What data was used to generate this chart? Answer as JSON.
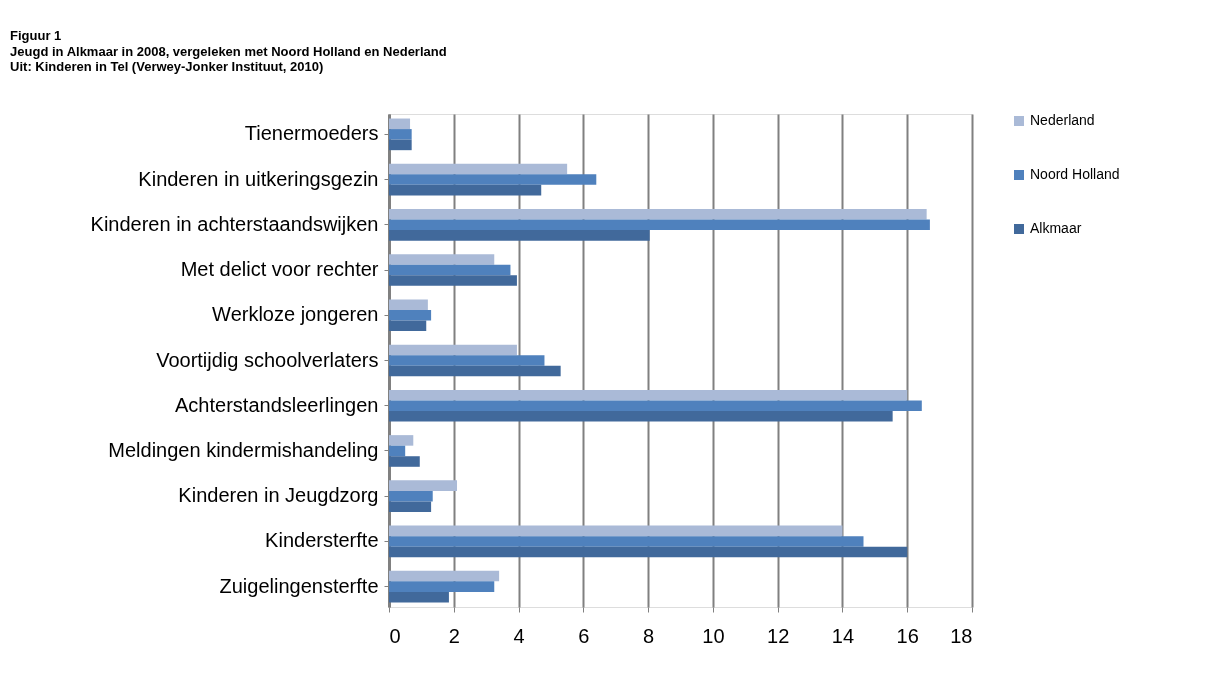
{
  "chart_data": {
    "type": "bar",
    "orientation": "horizontal",
    "title": "Figuur 1",
    "subtitle": "Jeugd in Alkmaar in 2008, vergeleken met Noord Holland en Nederland",
    "annotations": [
      "Uit: Kinderen in Tel (Verwey-Jonker Instituut, 2010)"
    ],
    "categories": [
      "Tienermoeders",
      "Kinderen in uitkeringsgezin",
      "Kinderen in achterstaandswijken",
      "Met delict voor rechter",
      "Werkloze jongeren",
      "Voortijdig schoolverlaters",
      "Achterstandsleerlingen",
      "Meldingen kindermishandeling",
      "Kinderen in Jeugdzorg",
      "Kindersterfte",
      "Zuigelingensterfte"
    ],
    "series": [
      {
        "name": "Nederland",
        "color": "#aabad7",
        "values": [
          0.65,
          5.5,
          16.6,
          3.25,
          1.2,
          3.95,
          16.0,
          0.75,
          2.1,
          14.0,
          3.4
        ]
      },
      {
        "name": "Noord Holland",
        "color": "#4f81bd",
        "values": [
          0.7,
          6.4,
          16.7,
          3.75,
          1.3,
          4.8,
          16.45,
          0.5,
          1.35,
          14.65,
          3.25
        ]
      },
      {
        "name": "Alkmaar",
        "color": "#41699b",
        "values": [
          0.7,
          4.7,
          8.05,
          3.95,
          1.15,
          5.3,
          15.55,
          0.95,
          1.3,
          16.0,
          1.85
        ]
      }
    ],
    "xlim": [
      0,
      18
    ],
    "xticks": [
      0,
      2,
      4,
      6,
      8,
      10,
      12,
      14,
      16,
      18
    ],
    "grid": "x",
    "legend": "right"
  }
}
